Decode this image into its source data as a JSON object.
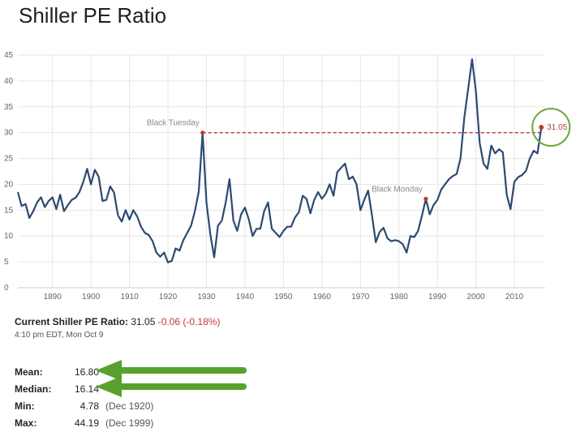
{
  "title": "Shiller PE Ratio",
  "current": {
    "label": "Current Shiller PE Ratio:",
    "value": "31.05",
    "change": "-0.06 (-0.18%)",
    "timestamp": "4:10 pm EDT, Mon Oct 9"
  },
  "stats": [
    {
      "label": "Mean:",
      "value": "16.80",
      "date": ""
    },
    {
      "label": "Median:",
      "value": "16.14",
      "date": ""
    },
    {
      "label": "Min:",
      "value": "4.78",
      "date": "(Dec 1920)"
    },
    {
      "label": "Max:",
      "value": "44.19",
      "date": "(Dec 1999)"
    }
  ],
  "colors": {
    "line": "#2c4a72",
    "reference": "#c0392b",
    "circle": "#6aaa3a",
    "arrow": "#5aa02c"
  },
  "chart_data": {
    "type": "line",
    "title": "Shiller PE Ratio",
    "xlim": [
      1881,
      2018
    ],
    "ylim": [
      0,
      45
    ],
    "yticks": [
      0,
      5,
      10,
      15,
      20,
      25,
      30,
      35,
      40,
      45
    ],
    "xticks": [
      1890,
      1900,
      1910,
      1920,
      1930,
      1940,
      1950,
      1960,
      1970,
      1980,
      1990,
      2000,
      2010
    ],
    "grid": true,
    "series": [
      {
        "x": [
          1881,
          1882,
          1883,
          1884,
          1885,
          1886,
          1887,
          1888,
          1889,
          1890,
          1891,
          1892,
          1893,
          1894,
          1895,
          1896,
          1897,
          1898,
          1899,
          1900,
          1901,
          1902,
          1903,
          1904,
          1905,
          1906,
          1907,
          1908,
          1909,
          1910,
          1911,
          1912,
          1913,
          1914,
          1915,
          1916,
          1917,
          1918,
          1919,
          1920,
          1921,
          1922,
          1923,
          1924,
          1925,
          1926,
          1927,
          1928,
          1929,
          1930,
          1931,
          1932,
          1933,
          1934,
          1935,
          1936,
          1937,
          1938,
          1939,
          1940,
          1941,
          1942,
          1943,
          1944,
          1945,
          1946,
          1947,
          1948,
          1949,
          1950,
          1951,
          1952,
          1953,
          1954,
          1955,
          1956,
          1957,
          1958,
          1959,
          1960,
          1961,
          1962,
          1963,
          1964,
          1965,
          1966,
          1967,
          1968,
          1969,
          1970,
          1971,
          1972,
          1973,
          1974,
          1975,
          1976,
          1977,
          1978,
          1979,
          1980,
          1981,
          1982,
          1983,
          1984,
          1985,
          1986,
          1987,
          1988,
          1989,
          1990,
          1991,
          1992,
          1993,
          1994,
          1995,
          1996,
          1997,
          1998,
          1999,
          2000,
          2001,
          2002,
          2003,
          2004,
          2005,
          2006,
          2007,
          2008,
          2009,
          2010,
          2011,
          2012,
          2013,
          2014,
          2015,
          2016,
          2017
        ],
        "values": [
          18.5,
          15.8,
          16.2,
          13.5,
          14.8,
          16.5,
          17.5,
          15.6,
          16.8,
          17.5,
          15.2,
          18.0,
          14.8,
          16.0,
          17.0,
          17.4,
          18.5,
          20.5,
          23.0,
          20.0,
          22.8,
          21.5,
          16.8,
          17.0,
          19.6,
          18.4,
          14.0,
          12.8,
          15.0,
          13.2,
          15.0,
          13.8,
          11.8,
          10.6,
          10.2,
          9.0,
          6.8,
          6.0,
          6.8,
          4.9,
          5.2,
          7.6,
          7.2,
          9.2,
          10.6,
          12.0,
          14.8,
          18.6,
          30.0,
          16.5,
          10.4,
          5.9,
          12.0,
          13.0,
          16.5,
          21.0,
          13.0,
          11.0,
          14.2,
          15.5,
          13.2,
          10.0,
          11.4,
          11.4,
          14.8,
          16.5,
          11.4,
          10.6,
          9.8,
          11.0,
          11.8,
          11.8,
          13.6,
          14.6,
          17.8,
          17.2,
          14.4,
          17.0,
          18.5,
          17.2,
          18.2,
          20.0,
          17.8,
          22.4,
          23.2,
          24.0,
          21.0,
          21.5,
          20.0,
          15.0,
          17.0,
          18.8,
          14.0,
          8.8,
          10.8,
          11.6,
          9.6,
          9.0,
          9.2,
          9.0,
          8.4,
          6.8,
          10.0,
          9.8,
          11.0,
          14.0,
          17.2,
          14.2,
          16.0,
          17.0,
          19.0,
          20.0,
          21.0,
          21.6,
          22.0,
          25.0,
          33.0,
          38.5,
          44.2,
          38.0,
          28.0,
          24.0,
          23.0,
          27.5,
          26.0,
          26.8,
          26.2,
          18.0,
          15.2,
          20.5,
          21.4,
          21.8,
          22.6,
          25.0,
          26.5,
          26.0,
          31.05
        ]
      }
    ],
    "annotations": [
      {
        "text": "Black Tuesday",
        "x": 1929,
        "y": 30.0
      },
      {
        "text": "Black Monday",
        "x": 1987,
        "y": 17.2
      }
    ],
    "reference_line": {
      "y": 30.0,
      "x_start": 1929,
      "x_end": 2017
    },
    "current_point": {
      "x": 2017,
      "y": 31.05,
      "label": "31.05"
    }
  }
}
